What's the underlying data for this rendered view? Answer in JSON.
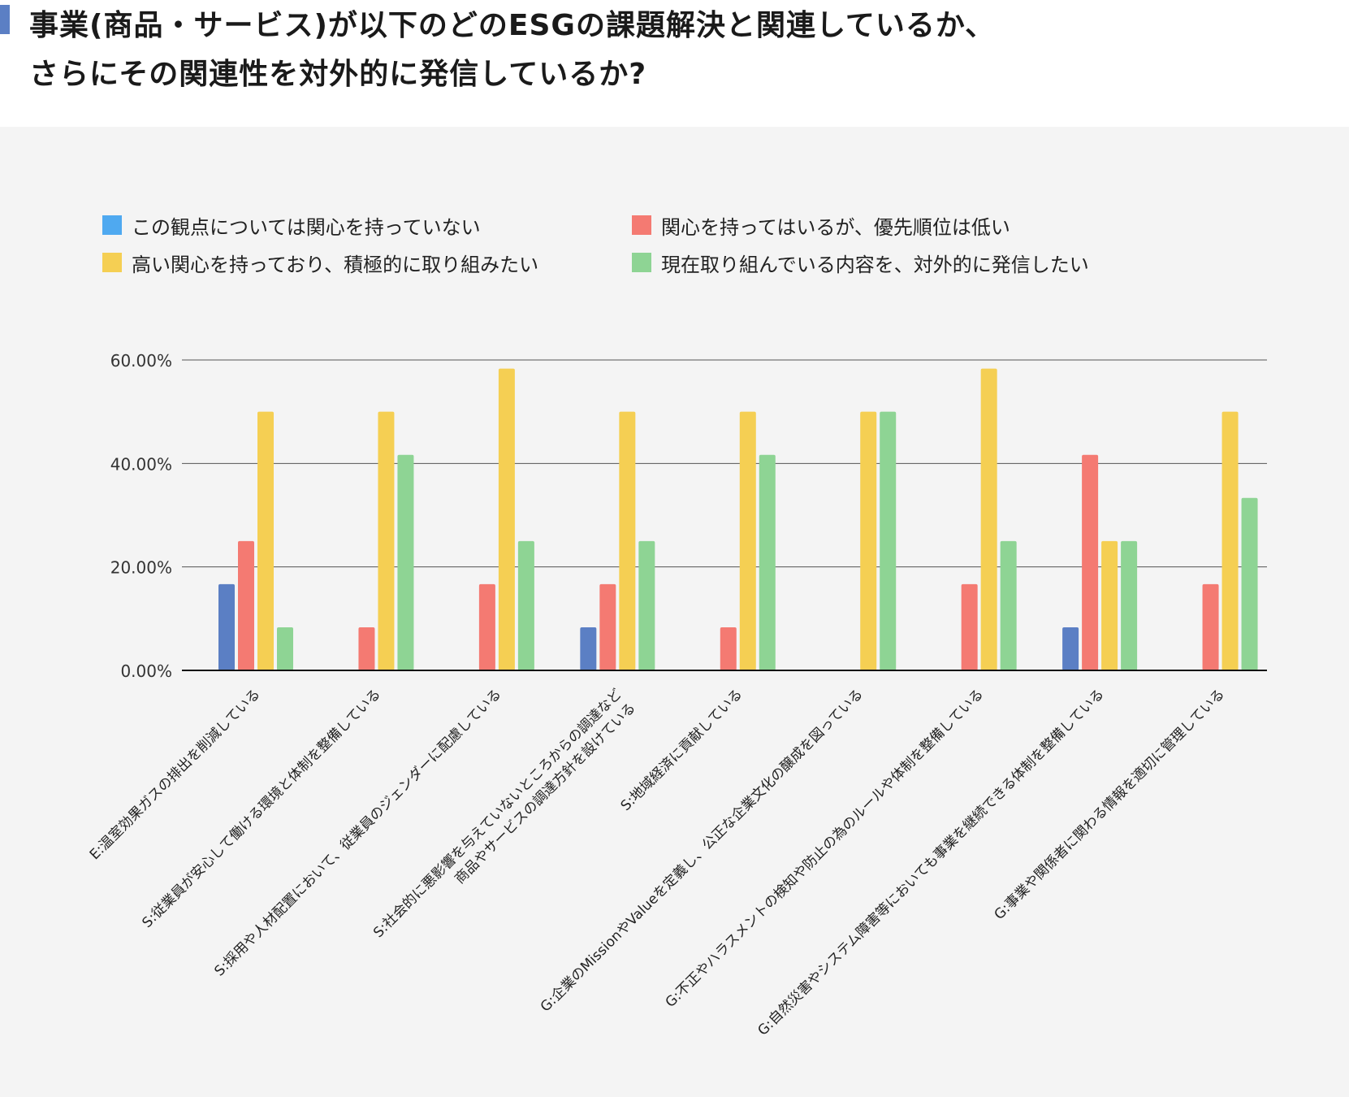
{
  "header": {
    "title_line1": "事業(商品・サービス)が以下のどのESGの課題解決と関連しているか、",
    "title_line2": "さらにその関連性を対外的に発信しているか?"
  },
  "colors": {
    "accent": "#5b7fc4",
    "panel_background": "#f4f4f4"
  },
  "chart_data": {
    "type": "bar",
    "title": "",
    "xlabel": "",
    "ylabel": "",
    "ylim": [
      0,
      60
    ],
    "y_ticks": [
      "0.00%",
      "20.00%",
      "40.00%",
      "60.00%"
    ],
    "y_tick_values": [
      0,
      20,
      40,
      60
    ],
    "grid": true,
    "legend_position": "top",
    "categories": [
      "E:温室効果ガスの排出を削減している",
      "S:従業員が安心して働ける環境と体制を整備している",
      "S:採用や人材配置において、従業員のジェンダーに配慮している",
      "S:社会的に悪影響を与えていないところからの調達など\n商品やサービスの調達方針を設けている",
      "S:地域経済に貢献している",
      "G:企業のMissionやValueを定義し、公正な企業文化の醸成を図っている",
      "G:不正やハラスメントの検知や防止の為のルールや体制を整備している",
      "G:自然災害やシステム障害等においても事業を継続できる体制を整備している",
      "G:事業や関係者に関わる情報を適切に管理している"
    ],
    "series": [
      {
        "name": "この観点については関心を持っていない",
        "color": "#5b7fc4",
        "legend_color": "#4fa9f0",
        "values": [
          16.67,
          0,
          0,
          8.33,
          0,
          0,
          0,
          8.33,
          0
        ]
      },
      {
        "name": "関心を持ってはいるが、優先順位は低い",
        "color": "#f47a72",
        "legend_color": "#f47a72",
        "values": [
          25,
          8.33,
          16.67,
          16.67,
          8.33,
          0,
          16.67,
          41.67,
          16.67
        ]
      },
      {
        "name": "高い関心を持っており、積極的に取り組みたい",
        "color": "#f5cf53",
        "legend_color": "#f5cf53",
        "values": [
          50,
          50,
          58.33,
          50,
          50,
          50,
          58.33,
          25,
          50
        ]
      },
      {
        "name": "現在取り組んでいる内容を、対外的に発信したい",
        "color": "#8ed494",
        "legend_color": "#8ed494",
        "values": [
          8.33,
          41.67,
          25,
          25,
          41.67,
          50,
          25,
          25,
          33.33
        ]
      }
    ]
  }
}
